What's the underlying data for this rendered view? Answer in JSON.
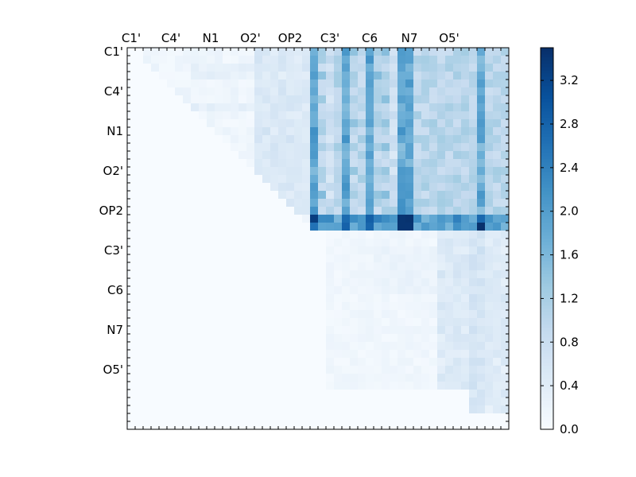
{
  "chart_data": {
    "type": "heatmap",
    "title": "",
    "xlabel": "",
    "ylabel": "",
    "colormap": "Blues",
    "colors": {
      "low": "#f7fbff",
      "high": "#08306b"
    },
    "grid": false,
    "n_rows": 48,
    "n_cols": 48,
    "x_tick_labels": [
      "C1'",
      "C4'",
      "N1",
      "O2'",
      "OP2",
      "C3'",
      "C6",
      "N7",
      "O5'"
    ],
    "y_tick_labels": [
      "C1'",
      "C4'",
      "N1",
      "O2'",
      "OP2",
      "C3'",
      "C6",
      "N7",
      "O5'"
    ],
    "tick_cell_index": [
      0.5,
      5.5,
      10.5,
      15.5,
      20.5,
      25.5,
      30.5,
      35.5,
      40.5
    ],
    "colorbar": {
      "range": [
        0.0,
        3.5
      ],
      "tick_values": [
        0.0,
        0.4,
        0.8,
        1.2,
        1.6,
        2.0,
        2.4,
        2.8,
        3.2
      ],
      "tick_labels": [
        "0.0",
        "0.4",
        "0.8",
        "1.2",
        "1.6",
        "2.0",
        "2.4",
        "2.8",
        "3.2"
      ],
      "location": "right"
    },
    "regions": {
      "upper_left_block": {
        "rows": [
          0,
          23
        ],
        "cols": [
          2,
          23
        ],
        "level_range": [
          0.0,
          0.5
        ]
      },
      "upper_right_block": {
        "rows": [
          0,
          22
        ],
        "cols": [
          23,
          48
        ],
        "level_range": [
          0.6,
          3.5
        ]
      },
      "lower_right_block": {
        "rows": [
          23,
          45
        ],
        "cols": [
          25,
          48
        ],
        "level_range": [
          0.0,
          0.8
        ]
      },
      "lower_left": {
        "rows": [
          23,
          48
        ],
        "cols": [
          0,
          25
        ],
        "level": 0.0
      }
    },
    "strong_columns": [
      23,
      27,
      30,
      34,
      35,
      44
    ],
    "strong_rows": [
      21,
      22
    ],
    "peak_cells": [
      [
        21,
        34
      ],
      [
        21,
        35
      ],
      [
        22,
        34
      ],
      [
        22,
        35
      ],
      [
        22,
        44
      ],
      [
        21,
        23
      ]
    ],
    "peak_value": 3.5
  }
}
